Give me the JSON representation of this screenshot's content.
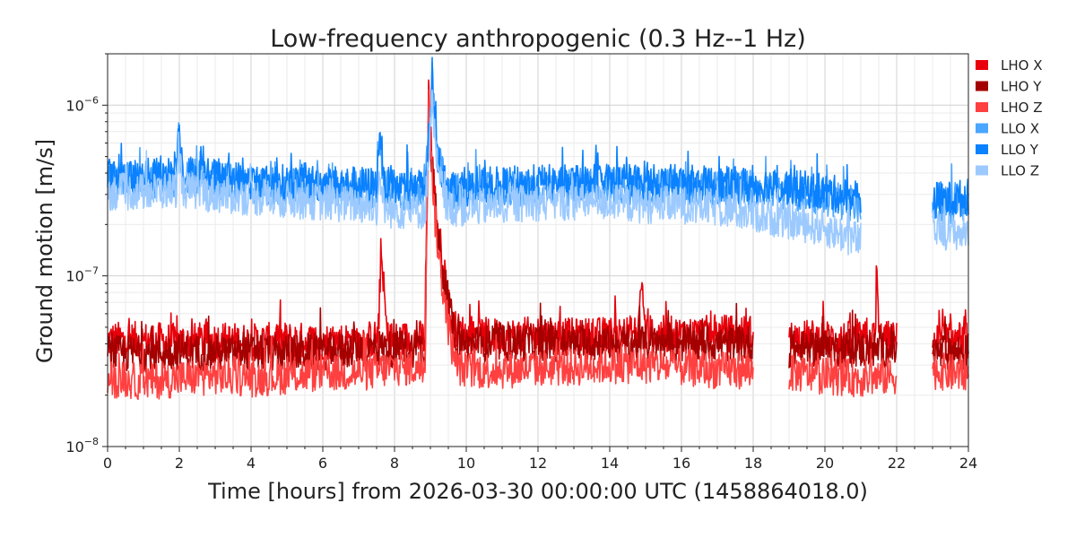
{
  "chart_data": {
    "type": "line",
    "title": "Low-frequency anthropogenic (0.3 Hz--1 Hz)",
    "xlabel": "Time [hours] from 2026-03-30 00:00:00 UTC (1458864018.0)",
    "ylabel": "Ground motion [m/s]",
    "xlim": [
      0,
      24
    ],
    "ylim": [
      1e-08,
      2e-06
    ],
    "yscale": "log",
    "grid": true,
    "legend_position": "top-right",
    "x_ticks": [
      0,
      2,
      4,
      6,
      8,
      10,
      12,
      14,
      16,
      18,
      20,
      22,
      24
    ],
    "x_tick_labels": [
      "0",
      "2",
      "4",
      "6",
      "8",
      "10",
      "12",
      "14",
      "16",
      "18",
      "20",
      "22",
      "24"
    ],
    "y_ticks": [
      1e-08,
      1e-07,
      1e-06
    ],
    "y_tick_labels": [
      "10",
      "10",
      "10"
    ],
    "y_tick_exponents": [
      "−8",
      "−7",
      "−6"
    ],
    "series": [
      {
        "name": "LHO X",
        "color": "#e8000b",
        "segments": [
          {
            "x": [
              0,
              1,
              2,
              3,
              4,
              5,
              6,
              7,
              7.55,
              7.62,
              7.8,
              8,
              8.85,
              8.95,
              9.05,
              9.2,
              9.4,
              9.6,
              10,
              11,
              12,
              13,
              14,
              14.8,
              14.87,
              15,
              16,
              17,
              18
            ],
            "y": [
              4.2e-08,
              4.2e-08,
              4.1e-08,
              4.2e-08,
              4.1e-08,
              4.2e-08,
              4.1e-08,
              4.2e-08,
              4.3e-08,
              1.4e-07,
              4.3e-08,
              4.2e-08,
              4.3e-08,
              1.3e-06,
              4.5e-07,
              2e-07,
              1e-07,
              5e-08,
              4.5e-08,
              4.4e-08,
              4.5e-08,
              4.4e-08,
              4.5e-08,
              4.6e-08,
              9.8e-08,
              4.6e-08,
              4.5e-08,
              4.6e-08,
              4.6e-08
            ]
          },
          {
            "x": [
              19,
              20,
              21,
              21.4,
              21.45,
              21.5,
              22
            ],
            "y": [
              4.3e-08,
              4.3e-08,
              4.2e-08,
              4.3e-08,
              1.1e-07,
              4.3e-08,
              4.2e-08
            ]
          },
          {
            "x": [
              23,
              23.5,
              24
            ],
            "y": [
              4.2e-08,
              4.2e-08,
              4.2e-08
            ]
          }
        ]
      },
      {
        "name": "LHO Y",
        "color": "#a40000",
        "segments": [
          {
            "x": [
              0,
              1,
              2,
              3,
              4,
              5,
              6,
              7,
              7.6,
              8,
              8.85,
              8.95,
              9.1,
              9.3,
              9.5,
              9.7,
              10,
              11,
              12,
              13,
              14,
              15,
              16,
              17,
              18
            ],
            "y": [
              3.5e-08,
              3.5e-08,
              3.6e-08,
              3.5e-08,
              3.6e-08,
              3.5e-08,
              3.6e-08,
              3.7e-08,
              3.8e-08,
              3.7e-08,
              3.8e-08,
              1e-06,
              3e-07,
              1.2e-07,
              7e-08,
              4.2e-08,
              4e-08,
              4e-08,
              4.1e-08,
              4e-08,
              4e-08,
              4e-08,
              4e-08,
              4e-08,
              4e-08
            ]
          },
          {
            "x": [
              19,
              20,
              21,
              22
            ],
            "y": [
              3.7e-08,
              3.8e-08,
              3.7e-08,
              3.7e-08
            ]
          },
          {
            "x": [
              23,
              23.5,
              24
            ],
            "y": [
              3.5e-08,
              3.6e-08,
              3.5e-08
            ]
          }
        ]
      },
      {
        "name": "LHO Z",
        "color": "#ff4040",
        "segments": [
          {
            "x": [
              0,
              1,
              2,
              3,
              4,
              5,
              6,
              7,
              7.6,
              8,
              8.85,
              8.95,
              9.1,
              9.3,
              9.5,
              9.7,
              10,
              11,
              12,
              13,
              14,
              15,
              16,
              17,
              18
            ],
            "y": [
              2.5e-08,
              2.4e-08,
              2.5e-08,
              2.6e-08,
              2.5e-08,
              2.6e-08,
              2.7e-08,
              2.7e-08,
              2.8e-08,
              2.9e-08,
              2.9e-08,
              1.2e-06,
              2.5e-07,
              1e-07,
              5e-08,
              3e-08,
              2.8e-08,
              2.8e-08,
              2.9e-08,
              2.9e-08,
              3e-08,
              3e-08,
              2.9e-08,
              2.8e-08,
              2.8e-08
            ]
          },
          {
            "x": [
              19,
              20,
              21,
              22
            ],
            "y": [
              2.7e-08,
              2.6e-08,
              2.5e-08,
              2.6e-08
            ]
          },
          {
            "x": [
              23,
              23.5,
              24
            ],
            "y": [
              2.8e-08,
              2.7e-08,
              2.7e-08
            ]
          }
        ]
      },
      {
        "name": "LLO X",
        "color": "#4ba6ff",
        "segments": [
          {
            "x": [
              0,
              1,
              1.9,
              2,
              2.1,
              3,
              4,
              5,
              6,
              7,
              7.5,
              7.6,
              7.7,
              8,
              8.85,
              9.05,
              9.2,
              9.5,
              10,
              11,
              12,
              13,
              14,
              15,
              16,
              17,
              18,
              19,
              20,
              21
            ],
            "y": [
              3.6e-07,
              3.6e-07,
              3.7e-07,
              7e-07,
              3.8e-07,
              3.6e-07,
              3.4e-07,
              3.3e-07,
              3.3e-07,
              3.2e-07,
              3.2e-07,
              6.5e-07,
              3.2e-07,
              3.1e-07,
              3.1e-07,
              1.4e-06,
              5e-07,
              3.1e-07,
              3.1e-07,
              3.2e-07,
              3.3e-07,
              3.3e-07,
              3.4e-07,
              3.3e-07,
              3.3e-07,
              3.2e-07,
              3.2e-07,
              3.1e-07,
              2.9e-07,
              2.6e-07
            ]
          },
          {
            "x": [
              23,
              23.5,
              24
            ],
            "y": [
              2.6e-07,
              2.6e-07,
              2.7e-07
            ]
          }
        ]
      },
      {
        "name": "LLO Y",
        "color": "#0a81ff",
        "segments": [
          {
            "x": [
              0,
              1,
              1.9,
              2,
              2.1,
              3,
              4,
              5,
              6,
              7,
              7.5,
              7.6,
              7.7,
              8,
              8.85,
              9.05,
              9.2,
              9.5,
              10,
              11,
              12,
              13,
              14,
              15,
              16,
              17,
              18,
              19,
              20,
              21
            ],
            "y": [
              3.8e-07,
              3.8e-07,
              3.9e-07,
              7.5e-07,
              4e-07,
              3.8e-07,
              3.6e-07,
              3.5e-07,
              3.5e-07,
              3.4e-07,
              3.4e-07,
              7.8e-07,
              3.4e-07,
              3.3e-07,
              3.3e-07,
              1.2e-06,
              4.8e-07,
              3.3e-07,
              3.3e-07,
              3.4e-07,
              3.5e-07,
              3.5e-07,
              3.6e-07,
              3.5e-07,
              3.5e-07,
              3.4e-07,
              3.4e-07,
              3.3e-07,
              3.1e-07,
              2.8e-07
            ]
          },
          {
            "x": [
              23,
              23.5,
              24
            ],
            "y": [
              2.8e-07,
              2.8e-07,
              2.9e-07
            ]
          }
        ]
      },
      {
        "name": "LLO Z",
        "color": "#9ccaff",
        "segments": [
          {
            "x": [
              0,
              1,
              1.9,
              2,
              2.1,
              3,
              4,
              5,
              6,
              7,
              7.5,
              7.6,
              7.7,
              8,
              8.85,
              9.05,
              9.2,
              9.5,
              10,
              11,
              12,
              13,
              14,
              15,
              16,
              17,
              18,
              19,
              20,
              21
            ],
            "y": [
              3.1e-07,
              3.1e-07,
              3.2e-07,
              5e-07,
              3.2e-07,
              3e-07,
              2.9e-07,
              2.8e-07,
              2.7e-07,
              2.6e-07,
              2.5e-07,
              4e-07,
              2.5e-07,
              2.4e-07,
              2.4e-07,
              1e-06,
              4e-07,
              2.5e-07,
              2.5e-07,
              2.6e-07,
              2.7e-07,
              2.7e-07,
              2.7e-07,
              2.6e-07,
              2.6e-07,
              2.5e-07,
              2.3e-07,
              2.1e-07,
              1.9e-07,
              1.6e-07
            ]
          },
          {
            "x": [
              23,
              23.5,
              24
            ],
            "y": [
              1.9e-07,
              1.8e-07,
              1.8e-07
            ]
          }
        ]
      }
    ]
  }
}
